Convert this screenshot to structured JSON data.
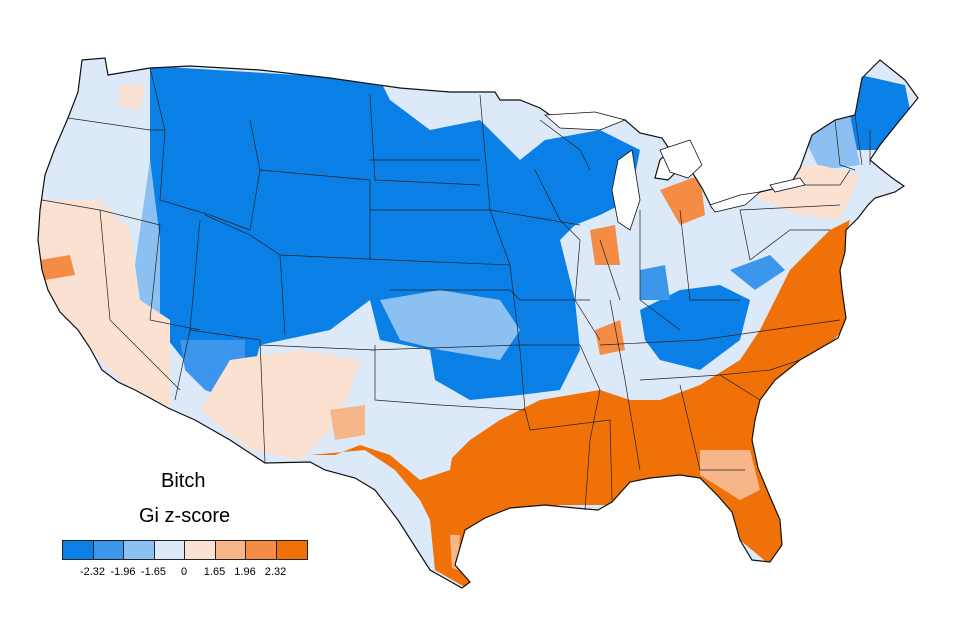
{
  "map": {
    "title": "Bitch",
    "legend": {
      "title": "Gi z-score",
      "colors": [
        "#0a7fe6",
        "#3b96ec",
        "#8cbff2",
        "#dce9f8",
        "#fbe1d2",
        "#f7b58a",
        "#f58c45",
        "#f07108"
      ],
      "ticks": [
        "-2.32",
        "-1.96",
        "-1.65",
        "0",
        "1.65",
        "1.96",
        "2.32"
      ]
    }
  }
}
